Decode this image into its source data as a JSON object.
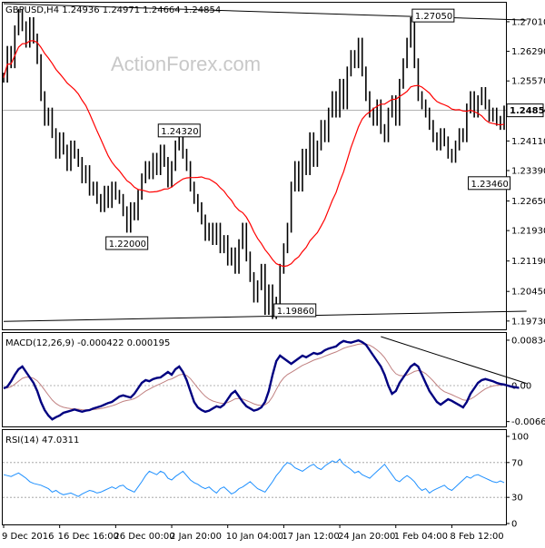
{
  "chart_data": {
    "type": "ohlc",
    "watermark": "ActionForex.com",
    "price_pane": {
      "header": "GBPUSD,H4  1.24936 1.24971 1.24664 1.24854",
      "ylim": [
        1.1955,
        1.2745
      ],
      "y_ticks": [
        "1.27010",
        "1.26290",
        "1.25570",
        "1.24854",
        "1.24110",
        "1.23390",
        "1.22650",
        "1.21930",
        "1.21190",
        "1.20450",
        "1.19730"
      ],
      "last_price": "1.24854",
      "annotations": [
        {
          "text": "1.27050",
          "index": 115,
          "price": 1.2705
        },
        {
          "text": "1.24320",
          "index": 47,
          "price": 1.2432
        },
        {
          "text": "1.22000",
          "index": 33,
          "price": 1.22
        },
        {
          "text": "1.23460",
          "index": 130,
          "price": 1.2346
        },
        {
          "text": "1.19860",
          "index": 78,
          "price": 1.1986
        }
      ],
      "trendlines": [
        {
          "from": [
            0,
            1.2745
          ],
          "to": [
            140,
            1.2705
          ]
        },
        {
          "from": [
            0,
            1.1972
          ],
          "to": [
            140,
            1.1997
          ]
        }
      ],
      "ma_color": "#ff0000",
      "ma_period": 20
    },
    "macd_pane": {
      "header": "MACD(12,26,9) -0.000422 0.000195",
      "ylim": [
        -0.0075,
        0.0095
      ],
      "y_ticks": [
        "0.008341",
        "0.00",
        "-0.00661"
      ],
      "macd_color": "#000080",
      "signal_color": "#c08080",
      "trendline": {
        "from": [
          101,
          0.009
        ],
        "to": [
          140,
          0.0004
        ]
      }
    },
    "rsi_pane": {
      "header": "RSI(14) 47.0311",
      "ylim": [
        0,
        100
      ],
      "y_ticks": [
        "100",
        "70",
        "30",
        "0"
      ],
      "levels": [
        70,
        30
      ],
      "line_color": "#1e90ff"
    },
    "x_ticks": [
      {
        "label": "9 Dec 2016",
        "index": 0
      },
      {
        "label": "16 Dec 16:00",
        "index": 15
      },
      {
        "label": "26 Dec 00:00",
        "index": 30
      },
      {
        "label": "2 Jan 20:00",
        "index": 45
      },
      {
        "label": "10 Jan 04:00",
        "index": 60
      },
      {
        "label": "17 Jan 12:00",
        "index": 75
      },
      {
        "label": "24 Jan 20:00",
        "index": 90
      },
      {
        "label": "1 Feb 04:00",
        "index": 105
      },
      {
        "label": "8 Feb 12:00",
        "index": 120
      }
    ],
    "closes": [
      1.2565,
      1.263,
      1.26,
      1.268,
      1.272,
      1.269,
      1.265,
      1.27,
      1.266,
      1.261,
      1.252,
      1.246,
      1.248,
      1.243,
      1.238,
      1.242,
      1.239,
      1.235,
      1.24,
      1.238,
      1.236,
      1.232,
      1.234,
      1.229,
      1.23,
      1.227,
      1.225,
      1.229,
      1.226,
      1.23,
      1.228,
      1.227,
      1.224,
      1.22,
      1.225,
      1.223,
      1.228,
      1.232,
      1.235,
      1.233,
      1.237,
      1.234,
      1.239,
      1.236,
      1.231,
      1.235,
      1.24,
      1.242,
      1.238,
      1.235,
      1.23,
      1.227,
      1.225,
      1.222,
      1.218,
      1.22,
      1.217,
      1.22,
      1.215,
      1.217,
      1.212,
      1.214,
      1.21,
      1.216,
      1.22,
      1.213,
      1.208,
      1.203,
      1.206,
      1.21,
      1.2,
      1.205,
      1.199,
      1.202,
      1.21,
      1.215,
      1.22,
      1.23,
      1.235,
      1.23,
      1.238,
      1.234,
      1.242,
      1.236,
      1.24,
      1.245,
      1.242,
      1.248,
      1.252,
      1.248,
      1.255,
      1.25,
      1.258,
      1.262,
      1.26,
      1.265,
      1.258,
      1.252,
      1.248,
      1.246,
      1.25,
      1.244,
      1.242,
      1.248,
      1.251,
      1.246,
      1.255,
      1.26,
      1.265,
      1.27,
      1.26,
      1.252,
      1.25,
      1.248,
      1.245,
      1.242,
      1.24,
      1.243,
      1.241,
      1.238,
      1.237,
      1.24,
      1.243,
      1.242,
      1.249,
      1.252,
      1.248,
      1.251,
      1.253,
      1.25,
      1.247,
      1.248,
      1.246,
      1.245,
      1.2485
    ],
    "rsi": [
      56,
      55,
      54,
      56,
      58,
      55,
      52,
      48,
      46,
      45,
      44,
      42,
      40,
      36,
      38,
      35,
      33,
      34,
      35,
      33,
      31,
      34,
      36,
      38,
      37,
      35,
      36,
      38,
      40,
      42,
      40,
      43,
      44,
      40,
      38,
      36,
      42,
      48,
      55,
      60,
      58,
      56,
      60,
      58,
      52,
      50,
      54,
      57,
      60,
      55,
      50,
      47,
      45,
      42,
      40,
      42,
      38,
      35,
      40,
      42,
      38,
      34,
      36,
      40,
      42,
      45,
      48,
      44,
      40,
      38,
      36,
      42,
      48,
      55,
      60,
      66,
      70,
      68,
      64,
      62,
      60,
      63,
      66,
      68,
      64,
      62,
      66,
      69,
      72,
      70,
      74,
      68,
      65,
      62,
      58,
      60,
      56,
      54,
      52,
      56,
      60,
      64,
      68,
      62,
      56,
      50,
      48,
      52,
      55,
      52,
      48,
      42,
      38,
      40,
      35,
      38,
      40,
      42,
      44,
      40,
      38,
      42,
      46,
      50,
      54,
      52,
      55,
      56,
      54,
      52,
      50,
      48,
      47,
      49,
      47
    ],
    "macd": [
      -0.0005,
      -0.0002,
      0.0008,
      0.002,
      0.003,
      0.0035,
      0.0025,
      0.0015,
      0.0005,
      -0.001,
      -0.003,
      -0.0045,
      -0.0055,
      -0.0062,
      -0.0058,
      -0.0055,
      -0.005,
      -0.0048,
      -0.0046,
      -0.0044,
      -0.0046,
      -0.0048,
      -0.0046,
      -0.0045,
      -0.0042,
      -0.004,
      -0.0038,
      -0.0035,
      -0.0032,
      -0.003,
      -0.0025,
      -0.002,
      -0.0018,
      -0.002,
      -0.0022,
      -0.0015,
      -0.0005,
      0.0005,
      0.001,
      0.0008,
      0.0012,
      0.0014,
      0.0015,
      0.002,
      0.0025,
      0.002,
      0.003,
      0.0035,
      0.0025,
      0.001,
      -0.001,
      -0.003,
      -0.004,
      -0.0045,
      -0.0048,
      -0.0046,
      -0.0042,
      -0.0038,
      -0.004,
      -0.0035,
      -0.0025,
      -0.0015,
      -0.001,
      -0.002,
      -0.003,
      -0.0038,
      -0.0042,
      -0.0046,
      -0.0044,
      -0.004,
      -0.003,
      -0.001,
      0.002,
      0.0045,
      0.0055,
      0.005,
      0.0045,
      0.004,
      0.0045,
      0.005,
      0.0055,
      0.0052,
      0.0056,
      0.006,
      0.0058,
      0.006,
      0.0065,
      0.0068,
      0.007,
      0.0072,
      0.0078,
      0.0082,
      0.008,
      0.0079,
      0.0081,
      0.0083,
      0.008,
      0.0075,
      0.0065,
      0.0055,
      0.0045,
      0.0035,
      0.002,
      0.0,
      -0.0015,
      -0.001,
      0.0005,
      0.0015,
      0.0025,
      0.0035,
      0.004,
      0.0035,
      0.002,
      0.0005,
      -0.001,
      -0.002,
      -0.003,
      -0.0035,
      -0.003,
      -0.0025,
      -0.0028,
      -0.0032,
      -0.0036,
      -0.004,
      -0.003,
      -0.0015,
      -0.0005,
      0.0005,
      0.001,
      0.0012,
      0.001,
      0.0008,
      0.0005,
      0.0003,
      0.0002,
      0.0,
      -0.0002,
      -0.0003,
      -0.0004
    ]
  }
}
